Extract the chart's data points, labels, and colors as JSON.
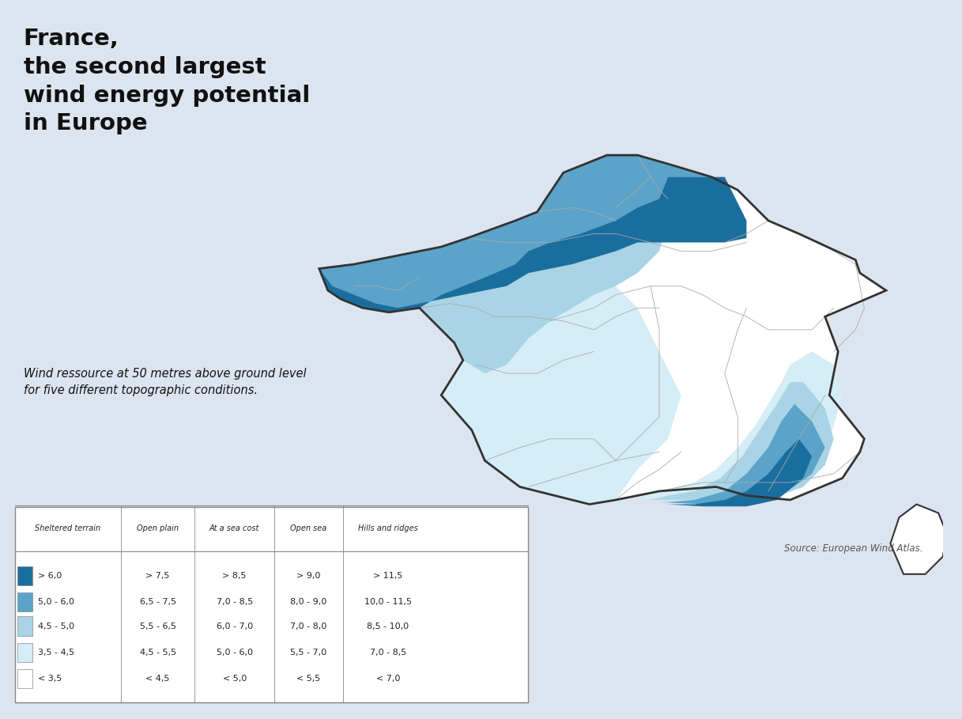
{
  "title_line1": "France,",
  "title_line2": "the second largest",
  "title_line3": "wind energy potential",
  "title_line4": "in Europe",
  "subtitle": "Wind ressource at 50 metres above ground level\nfor five different topographic conditions.",
  "source": "Source: European Wind Atlas.",
  "legend_colors": [
    "#1a6e9e",
    "#5ba3c9",
    "#a8d4e6",
    "#d4edf7",
    "#ffffff"
  ],
  "legend_labels": [
    "> 6,0",
    "5,0 - 6,0",
    "4,5 - 5,0",
    "3,5 - 4,5",
    "< 3,5"
  ],
  "table_headers": [
    "Sheltered terrain",
    "Open plain",
    "At a sea cost",
    "Open sea",
    "Hills and ridges"
  ],
  "table_rows": [
    [
      "> 6,0",
      "> 7,5",
      "> 8,5",
      "> 9,0",
      "> 11,5"
    ],
    [
      "5,0 - 6,0",
      "6,5 - 7,5",
      "7,0 - 8,5",
      "8,0 - 9,0",
      "10,0 - 11,5"
    ],
    [
      "4,5 - 5,0",
      "5,5 - 6,5",
      "6,0 - 7,0",
      "7,0 - 8,0",
      "8,5 - 10,0"
    ],
    [
      "3,5 - 4,5",
      "4,5 - 5,5",
      "5,0 - 6,0",
      "5,5 - 7,0",
      "7,0 - 8,5"
    ],
    [
      "< 3,5",
      "< 4,5",
      "< 5,0",
      "< 5,5",
      "< 7,0"
    ]
  ],
  "bg_color": "#dce5ef",
  "map_bg": "#ffffff",
  "wind_colors": [
    "#1a6e9e",
    "#5ba3c9",
    "#a8d4e6",
    "#d4edf7",
    "#ffffff"
  ],
  "border_color": "#444444",
  "region_border_color": "#aaaaaa"
}
